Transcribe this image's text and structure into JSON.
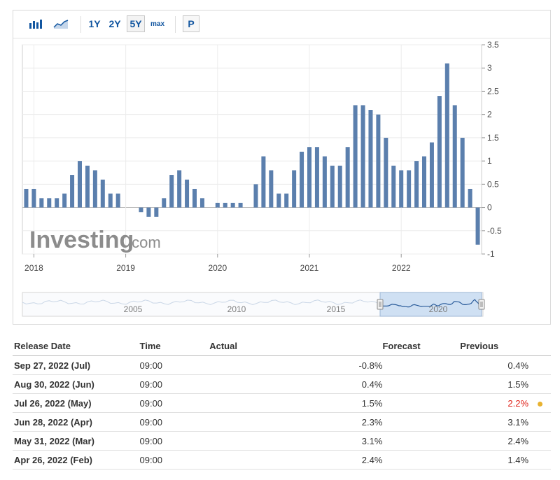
{
  "toolbar": {
    "ranges": [
      "1Y",
      "2Y",
      "5Y",
      "max"
    ],
    "selected_range": "5Y",
    "print_label": "P",
    "icons": [
      "bar-chart-icon",
      "area-chart-icon"
    ]
  },
  "chart_data": {
    "type": "bar",
    "title": "",
    "xlabel": "",
    "ylabel": "",
    "ylim": [
      -1,
      3.5
    ],
    "y_ticks": [
      "3.5",
      "3",
      "2.5",
      "2",
      "1.5",
      "1",
      "0.5",
      "0",
      "-0.5",
      "-1"
    ],
    "x_tick_labels": [
      "2018",
      "2019",
      "2020",
      "2021",
      "2022"
    ],
    "bar_color": "#5b7fad",
    "grid": true,
    "x_start": "2017-12",
    "values": [
      0.4,
      0.4,
      0.2,
      0.2,
      0.2,
      0.3,
      0.7,
      1.0,
      0.9,
      0.8,
      0.6,
      0.3,
      0.3,
      0.0,
      0.0,
      -0.1,
      -0.2,
      -0.2,
      0.2,
      0.7,
      0.8,
      0.6,
      0.4,
      0.2,
      0.0,
      0.1,
      0.1,
      0.1,
      0.1,
      0.0,
      0.5,
      1.1,
      0.8,
      0.3,
      0.3,
      0.8,
      1.2,
      1.3,
      1.3,
      1.1,
      0.9,
      0.9,
      1.3,
      2.2,
      2.2,
      2.1,
      2.0,
      1.5,
      0.9,
      0.8,
      0.8,
      1.0,
      1.1,
      1.4,
      2.4,
      3.1,
      2.2,
      1.5,
      0.4,
      -0.8
    ],
    "navigator": {
      "labels": [
        "2005",
        "2010",
        "2015",
        "2020"
      ]
    }
  },
  "watermark": {
    "brand": "Investing",
    "suffix": ".com"
  },
  "table": {
    "headers": {
      "release_date": "Release Date",
      "time": "Time",
      "actual": "Actual",
      "forecast": "Forecast",
      "previous": "Previous"
    },
    "rows": [
      {
        "date": "Sep 27, 2022 (Jul)",
        "time": "09:00",
        "actual": "-0.8%",
        "forecast": "",
        "previous": "0.4%"
      },
      {
        "date": "Aug 30, 2022 (Jun)",
        "time": "09:00",
        "actual": "0.4%",
        "forecast": "",
        "previous": "1.5%"
      },
      {
        "date": "Jul 26, 2022 (May)",
        "time": "09:00",
        "actual": "1.5%",
        "forecast": "",
        "previous": "2.2%",
        "previous_revised": true
      },
      {
        "date": "Jun 28, 2022 (Apr)",
        "time": "09:00",
        "actual": "2.3%",
        "forecast": "",
        "previous": "3.1%"
      },
      {
        "date": "May 31, 2022 (Mar)",
        "time": "09:00",
        "actual": "3.1%",
        "forecast": "",
        "previous": "2.4%"
      },
      {
        "date": "Apr 26, 2022 (Feb)",
        "time": "09:00",
        "actual": "2.4%",
        "forecast": "",
        "previous": "1.4%"
      }
    ]
  }
}
